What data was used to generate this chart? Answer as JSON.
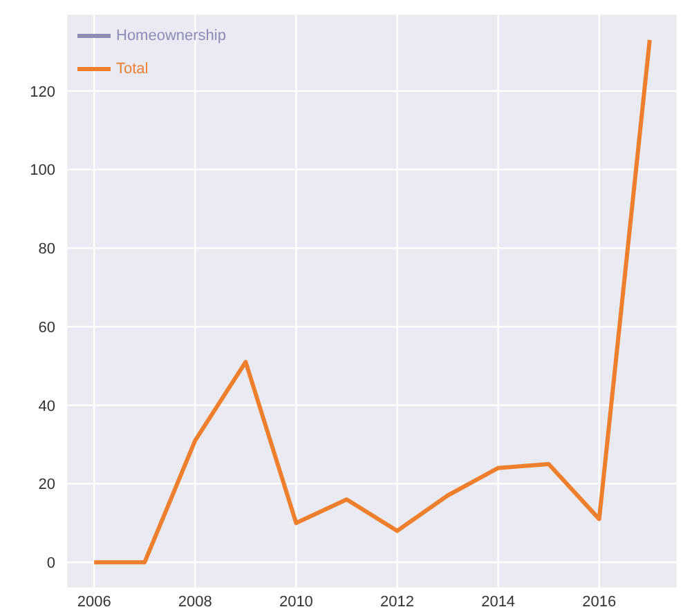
{
  "chart_data": {
    "type": "line",
    "x": [
      2006,
      2007,
      2008,
      2009,
      2010,
      2011,
      2012,
      2013,
      2014,
      2015,
      2016,
      2017
    ],
    "series": [
      {
        "name": "Homeownership",
        "color": "#8c8cb4",
        "values": [
          null,
          null,
          null,
          null,
          null,
          null,
          null,
          null,
          null,
          null,
          null,
          null
        ]
      },
      {
        "name": "Total",
        "color": "#ee7f2d",
        "values": [
          0,
          0,
          31,
          51,
          10,
          16,
          8,
          17,
          24,
          25,
          11,
          133
        ]
      }
    ],
    "xlim": [
      2005.45,
      2017.55
    ],
    "xticks": [
      2006,
      2008,
      2010,
      2012,
      2014,
      2016
    ],
    "ylim": [
      -6.65,
      139.65
    ],
    "yticks": [
      0,
      20,
      40,
      60,
      80,
      100,
      120
    ],
    "grid": true,
    "legend": "top left",
    "marker": "none",
    "line_style": "solid"
  }
}
